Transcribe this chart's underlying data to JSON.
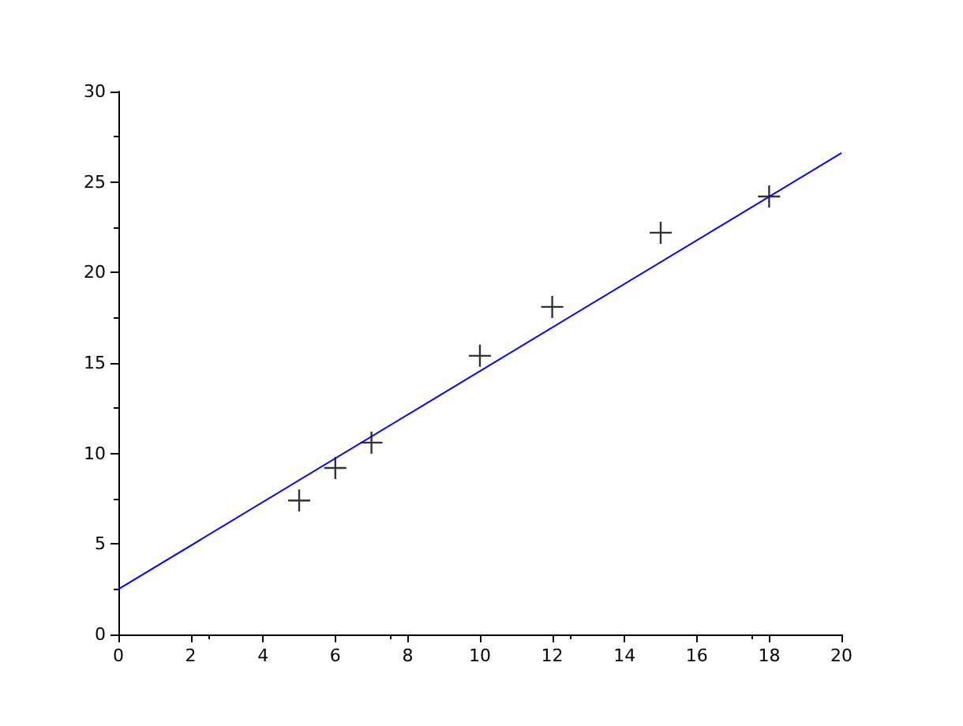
{
  "chart_data": {
    "type": "scatter",
    "xlim": [
      0,
      20
    ],
    "xticks": [
      0,
      2,
      4,
      6,
      8,
      10,
      12,
      14,
      16,
      18,
      20
    ],
    "ylim": [
      0,
      30
    ],
    "yticks": [
      0,
      5,
      10,
      15,
      20,
      25,
      30
    ],
    "grid": false,
    "series": [
      {
        "color": "#000000",
        "marker": "cross",
        "x": [
          5,
          6,
          7,
          10,
          12,
          15,
          18
        ],
        "values": [
          7.4,
          9.2,
          10.6,
          15.4,
          18.1,
          22.2,
          24.2
        ]
      },
      {
        "type": "line",
        "color": "#0000ff",
        "marker": "none",
        "line_style": "solid",
        "x": [
          0,
          20
        ],
        "values": [
          2.5,
          26.6
        ]
      }
    ]
  }
}
